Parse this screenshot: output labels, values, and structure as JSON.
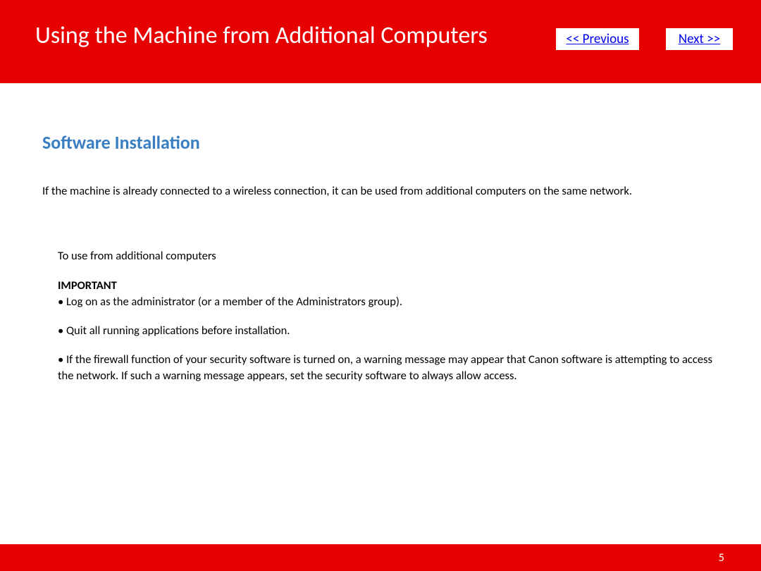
{
  "header": {
    "title": "Using the Machine from Additional Computers",
    "nav": {
      "previous_label": "<< Previous",
      "next_label": "Next >>"
    },
    "background_color": "#e60000"
  },
  "content": {
    "section_heading": "Software Installation",
    "section_heading_color": "#3a7ec2",
    "intro_text": "If the machine is already connected to a wireless connection, it can be used from additional computers on the same network.",
    "subsection_title": "To use from additional computers",
    "important_label": "IMPORTANT",
    "bullets": [
      "• Log on as the administrator (or a member of the Administrators group).",
      "• Quit all running applications before installation.",
      "• If the firewall function of your security software is turned on, a warning message may appear that Canon software is attempting to access the network. If such a warning message appears, set the security software to always allow access."
    ]
  },
  "footer": {
    "page_number": "5",
    "background_color": "#e60000"
  },
  "styling": {
    "nav_link_color": "#0000ee",
    "nav_button_bg": "#ffffff",
    "body_text_color": "#000000",
    "title_text_color": "#ffffff",
    "body_font_size": 16.5,
    "title_font_size": 34,
    "heading_font_size": 26,
    "nav_font_size": 19
  }
}
